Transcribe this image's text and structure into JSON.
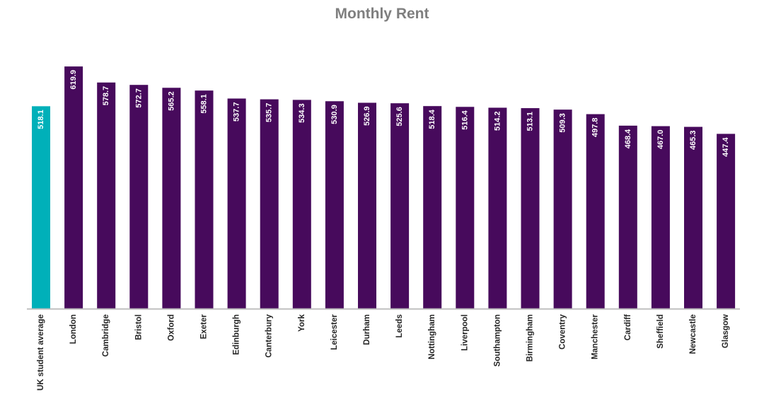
{
  "chart_data": {
    "type": "bar",
    "title": "Monthly Rent",
    "xlabel": "",
    "ylabel": "",
    "ylim": [
      0,
      620
    ],
    "grid": false,
    "legend": "none",
    "colors": {
      "highlight": "#00b0b9",
      "default": "#470a5c",
      "axis": "#bfbfbf",
      "title": "#7f7f7f"
    },
    "categories": [
      "UK student average",
      "London",
      "Cambridge",
      "Bristol",
      "Oxford",
      "Exeter",
      "Edinburgh",
      "Canterbury",
      "York",
      "Leicester",
      "Durham",
      "Leeds",
      "Nottingham",
      "Liverpool",
      "Southampton",
      "Birmingham",
      "Coventry",
      "Manchester",
      "Cardiff",
      "Sheffield",
      "Newcastle",
      "Glasgow"
    ],
    "values": [
      518.1,
      619.9,
      578.7,
      572.7,
      565.2,
      558.1,
      537.7,
      535.7,
      534.3,
      530.9,
      526.9,
      525.6,
      518.4,
      516.4,
      514.2,
      513.1,
      509.3,
      497.8,
      468.4,
      467.0,
      465.3,
      447.4
    ],
    "data_labels": [
      "518.1",
      "619.9",
      "578.7",
      "572.7",
      "565.2",
      "558.1",
      "537.7",
      "535.7",
      "534.3",
      "530.9",
      "526.9",
      "525.6",
      "518.4",
      "516.4",
      "514.2",
      "513.1",
      "509.3",
      "497.8",
      "468.4",
      "467.0",
      "465.3",
      "447.4"
    ],
    "highlight_index": 0
  }
}
